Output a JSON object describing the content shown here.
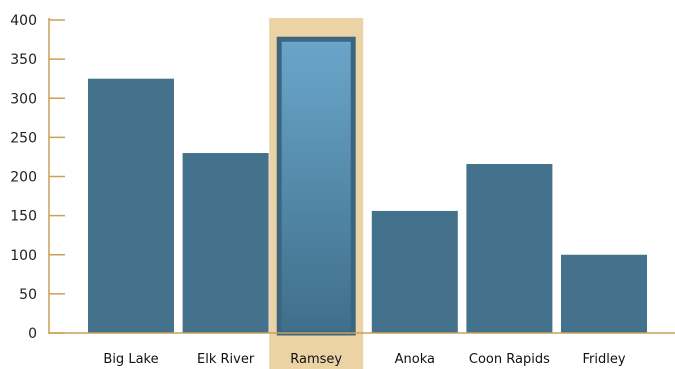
{
  "chart_data": {
    "type": "bar",
    "title": "",
    "xlabel": "",
    "ylabel": "",
    "categories": [
      "Big Lake",
      "Elk River",
      "Ramsey",
      "Anoka",
      "Coon Rapids",
      "Fridley"
    ],
    "values": [
      325,
      230,
      378,
      156,
      216,
      100
    ],
    "ylim": [
      0,
      400
    ],
    "yticks": [
      0,
      50,
      100,
      150,
      200,
      250,
      300,
      350,
      400
    ],
    "highlighted_category": "Ramsey",
    "grid": false,
    "colors": {
      "bar": "#44718b",
      "highlight_bar_top": "#6aa6ca",
      "highlight_bar_bottom": "#3f6e8a",
      "highlight_bar_border": "#3c6680",
      "highlight_band": "#ecd3a6",
      "axis": "#c9a05a"
    }
  }
}
